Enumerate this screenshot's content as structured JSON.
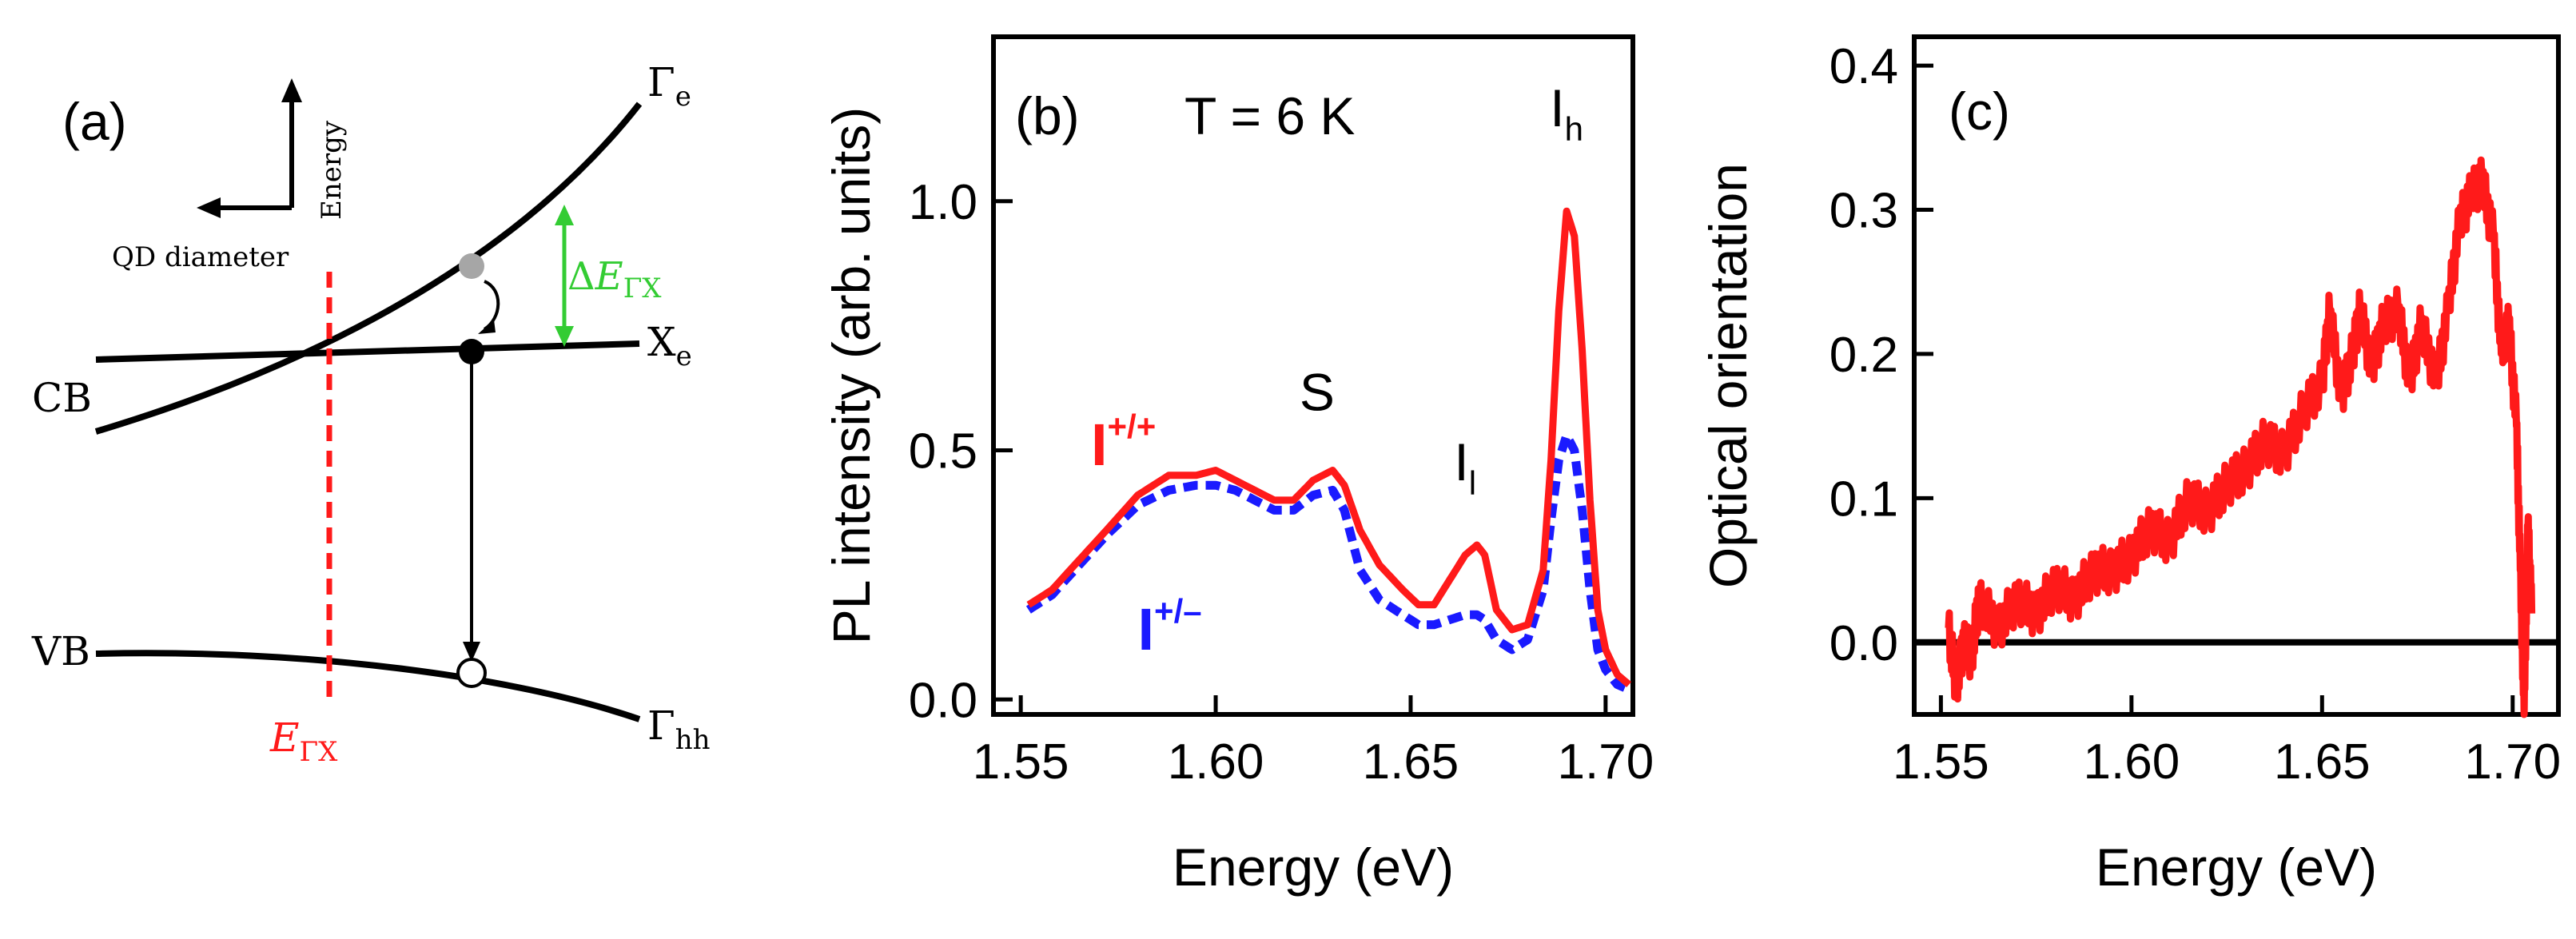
{
  "chart_data": [
    {
      "panel_label": "(a)",
      "type": "diagram",
      "axes": {
        "vertical": "Energy",
        "horizontal": "QD diameter"
      },
      "band_labels": {
        "cb": "CB",
        "vb": "VB"
      },
      "curve_labels": {
        "gamma_e": "Γ",
        "gamma_e_sub": "e",
        "x_e": "X",
        "x_e_sub": "e",
        "gamma_hh": "Γ",
        "gamma_hh_sub": "hh"
      },
      "delta_label": {
        "delta": "Δ",
        "e": "E",
        "sub": "ΓX"
      },
      "crossing_label": {
        "e": "E",
        "sub": "ΓX"
      },
      "colors": {
        "curves": "#000000",
        "crossing": "#ff1a1a",
        "delta": "#33cc33",
        "electron_upper": "#a6a6a6"
      }
    },
    {
      "panel_label": "(b)",
      "type": "line",
      "temperature_label": "T = 6 K",
      "xlabel": "Energy (eV)",
      "ylabel": "PL intensity (arb. units)",
      "xlim": [
        1.543,
        1.707
      ],
      "ylim": [
        -0.03,
        1.33
      ],
      "xticks": [
        1.55,
        1.6,
        1.65,
        1.7
      ],
      "xtick_labels": [
        "1.55",
        "1.60",
        "1.65",
        "1.70"
      ],
      "yticks": [
        0.0,
        0.5,
        1.0
      ],
      "ytick_labels": [
        "0.0",
        "0.5",
        "1.0"
      ],
      "peak_labels": [
        {
          "text": "S",
          "sub": "",
          "x": 1.626,
          "y": 0.58
        },
        {
          "text": "I",
          "sub": "l",
          "x": 1.664,
          "y": 0.44
        },
        {
          "text": "I",
          "sub": "h",
          "x": 1.69,
          "y": 1.15
        }
      ],
      "series": [
        {
          "name": "I+/+",
          "label_main": "I",
          "label_sup": "+/+",
          "color": "#ff1a1a",
          "style": "solid",
          "label_pos": [
            1.568,
            0.47
          ],
          "x": [
            1.552,
            1.558,
            1.565,
            1.572,
            1.58,
            1.588,
            1.595,
            1.6,
            1.605,
            1.61,
            1.615,
            1.62,
            1.625,
            1.63,
            1.633,
            1.637,
            1.642,
            1.648,
            1.652,
            1.656,
            1.66,
            1.664,
            1.667,
            1.669,
            1.672,
            1.676,
            1.68,
            1.684,
            1.686,
            1.688,
            1.69,
            1.692,
            1.694,
            1.696,
            1.698,
            1.7,
            1.703,
            1.706
          ],
          "values": [
            0.19,
            0.22,
            0.28,
            0.34,
            0.41,
            0.45,
            0.45,
            0.46,
            0.44,
            0.42,
            0.4,
            0.4,
            0.44,
            0.46,
            0.43,
            0.34,
            0.27,
            0.22,
            0.19,
            0.19,
            0.24,
            0.29,
            0.31,
            0.29,
            0.18,
            0.14,
            0.15,
            0.26,
            0.48,
            0.78,
            0.98,
            0.93,
            0.7,
            0.4,
            0.18,
            0.1,
            0.05,
            0.03
          ]
        },
        {
          "name": "I+/-",
          "label_main": "I",
          "label_sup": "+/–",
          "color": "#1a1aff",
          "style": "dashed",
          "label_pos": [
            1.58,
            0.1
          ],
          "x": [
            1.552,
            1.558,
            1.565,
            1.572,
            1.58,
            1.588,
            1.595,
            1.6,
            1.605,
            1.61,
            1.615,
            1.62,
            1.625,
            1.63,
            1.633,
            1.637,
            1.642,
            1.648,
            1.652,
            1.656,
            1.66,
            1.664,
            1.667,
            1.669,
            1.672,
            1.676,
            1.68,
            1.684,
            1.686,
            1.688,
            1.69,
            1.692,
            1.694,
            1.696,
            1.698,
            1.7,
            1.703,
            1.706
          ],
          "values": [
            0.18,
            0.21,
            0.27,
            0.33,
            0.39,
            0.42,
            0.43,
            0.43,
            0.42,
            0.4,
            0.38,
            0.38,
            0.41,
            0.42,
            0.38,
            0.26,
            0.2,
            0.17,
            0.15,
            0.15,
            0.16,
            0.17,
            0.17,
            0.16,
            0.12,
            0.1,
            0.12,
            0.22,
            0.36,
            0.48,
            0.53,
            0.5,
            0.38,
            0.22,
            0.1,
            0.06,
            0.03,
            0.02
          ]
        }
      ]
    },
    {
      "panel_label": "(c)",
      "type": "line",
      "xlabel": "Energy (eV)",
      "ylabel": "Optical orientation",
      "xlim": [
        1.543,
        1.712
      ],
      "ylim": [
        -0.05,
        0.42
      ],
      "xticks": [
        1.55,
        1.6,
        1.65,
        1.7
      ],
      "xtick_labels": [
        "1.55",
        "1.60",
        "1.65",
        "1.70"
      ],
      "yticks": [
        0.0,
        0.1,
        0.2,
        0.3,
        0.4
      ],
      "ytick_labels": [
        "0.0",
        "0.1",
        "0.2",
        "0.3",
        "0.4"
      ],
      "zero_line": {
        "y": 0.0,
        "color": "#000000"
      },
      "series": [
        {
          "name": "Optical orientation",
          "color": "#ff1a1a",
          "style": "solid",
          "x": [
            1.552,
            1.554,
            1.556,
            1.558,
            1.56,
            1.565,
            1.57,
            1.575,
            1.58,
            1.585,
            1.59,
            1.595,
            1.6,
            1.605,
            1.61,
            1.615,
            1.62,
            1.625,
            1.63,
            1.635,
            1.64,
            1.645,
            1.65,
            1.652,
            1.655,
            1.658,
            1.66,
            1.663,
            1.666,
            1.67,
            1.673,
            1.676,
            1.68,
            1.683,
            1.686,
            1.689,
            1.692,
            1.695,
            1.697,
            1.699,
            1.701,
            1.702,
            1.703,
            1.704,
            1.705
          ],
          "values": [
            0.01,
            -0.03,
            0.0,
            -0.01,
            0.03,
            0.01,
            0.03,
            0.02,
            0.04,
            0.03,
            0.05,
            0.05,
            0.06,
            0.08,
            0.07,
            0.1,
            0.09,
            0.11,
            0.12,
            0.14,
            0.13,
            0.16,
            0.18,
            0.23,
            0.17,
            0.2,
            0.23,
            0.19,
            0.22,
            0.23,
            0.18,
            0.22,
            0.18,
            0.23,
            0.29,
            0.31,
            0.32,
            0.28,
            0.2,
            0.22,
            0.15,
            0.05,
            -0.05,
            0.08,
            0.02
          ]
        }
      ]
    }
  ]
}
